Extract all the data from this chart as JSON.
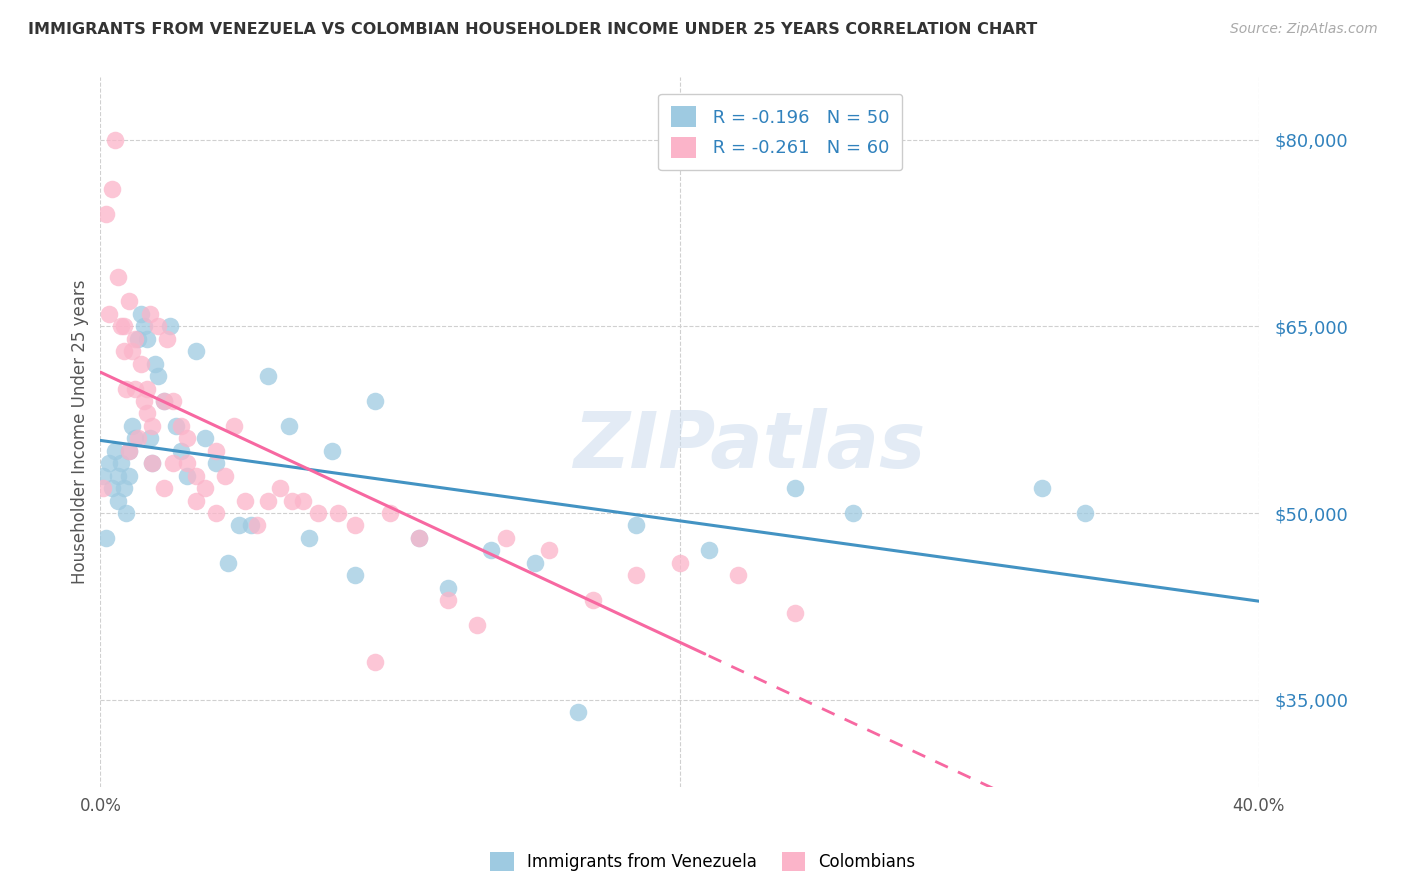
{
  "title": "IMMIGRANTS FROM VENEZUELA VS COLOMBIAN HOUSEHOLDER INCOME UNDER 25 YEARS CORRELATION CHART",
  "source": "Source: ZipAtlas.com",
  "ylabel": "Householder Income Under 25 years",
  "yticks": [
    35000,
    50000,
    65000,
    80000
  ],
  "ytick_labels": [
    "$35,000",
    "$50,000",
    "$65,000",
    "$80,000"
  ],
  "xmin": 0.0,
  "xmax": 0.4,
  "ymin": 28000,
  "ymax": 85000,
  "legend_r1": "-0.196",
  "legend_n1": "50",
  "legend_r2": "-0.261",
  "legend_n2": "60",
  "blue_scatter_color": "#9ecae1",
  "pink_scatter_color": "#fbb4c9",
  "blue_line_color": "#4393c3",
  "pink_line_color": "#f768a1",
  "stat_text_color": "#3182bd",
  "label_color": "#555555",
  "grid_color": "#d0d0d0",
  "watermark": "ZIPatlas",
  "legend_label1": "Immigrants from Venezuela",
  "legend_label2": "Colombians",
  "venezuela_x": [
    0.001,
    0.002,
    0.003,
    0.004,
    0.005,
    0.006,
    0.006,
    0.007,
    0.008,
    0.009,
    0.01,
    0.01,
    0.011,
    0.012,
    0.013,
    0.014,
    0.015,
    0.016,
    0.017,
    0.018,
    0.019,
    0.02,
    0.022,
    0.024,
    0.026,
    0.028,
    0.03,
    0.033,
    0.036,
    0.04,
    0.044,
    0.048,
    0.052,
    0.058,
    0.065,
    0.072,
    0.08,
    0.088,
    0.095,
    0.11,
    0.12,
    0.135,
    0.15,
    0.165,
    0.185,
    0.21,
    0.24,
    0.26,
    0.325,
    0.34
  ],
  "venezuela_y": [
    53000,
    48000,
    54000,
    52000,
    55000,
    53000,
    51000,
    54000,
    52000,
    50000,
    55000,
    53000,
    57000,
    56000,
    64000,
    66000,
    65000,
    64000,
    56000,
    54000,
    62000,
    61000,
    59000,
    65000,
    57000,
    55000,
    53000,
    63000,
    56000,
    54000,
    46000,
    49000,
    49000,
    61000,
    57000,
    48000,
    55000,
    45000,
    59000,
    48000,
    44000,
    47000,
    46000,
    34000,
    49000,
    47000,
    52000,
    50000,
    52000,
    50000
  ],
  "colombia_x": [
    0.001,
    0.002,
    0.003,
    0.004,
    0.005,
    0.006,
    0.007,
    0.008,
    0.009,
    0.01,
    0.011,
    0.012,
    0.013,
    0.014,
    0.015,
    0.016,
    0.017,
    0.018,
    0.02,
    0.022,
    0.023,
    0.025,
    0.028,
    0.03,
    0.033,
    0.036,
    0.04,
    0.043,
    0.046,
    0.05,
    0.054,
    0.058,
    0.062,
    0.066,
    0.07,
    0.075,
    0.082,
    0.088,
    0.095,
    0.1,
    0.11,
    0.12,
    0.13,
    0.14,
    0.155,
    0.17,
    0.185,
    0.2,
    0.22,
    0.24,
    0.008,
    0.012,
    0.018,
    0.025,
    0.033,
    0.01,
    0.016,
    0.022,
    0.03,
    0.04
  ],
  "colombia_y": [
    52000,
    74000,
    66000,
    76000,
    80000,
    69000,
    65000,
    63000,
    60000,
    67000,
    63000,
    64000,
    56000,
    62000,
    59000,
    60000,
    66000,
    54000,
    65000,
    59000,
    64000,
    59000,
    57000,
    56000,
    53000,
    52000,
    55000,
    53000,
    57000,
    51000,
    49000,
    51000,
    52000,
    51000,
    51000,
    50000,
    50000,
    49000,
    38000,
    50000,
    48000,
    43000,
    41000,
    48000,
    47000,
    43000,
    45000,
    46000,
    45000,
    42000,
    65000,
    60000,
    57000,
    54000,
    51000,
    55000,
    58000,
    52000,
    54000,
    50000
  ]
}
